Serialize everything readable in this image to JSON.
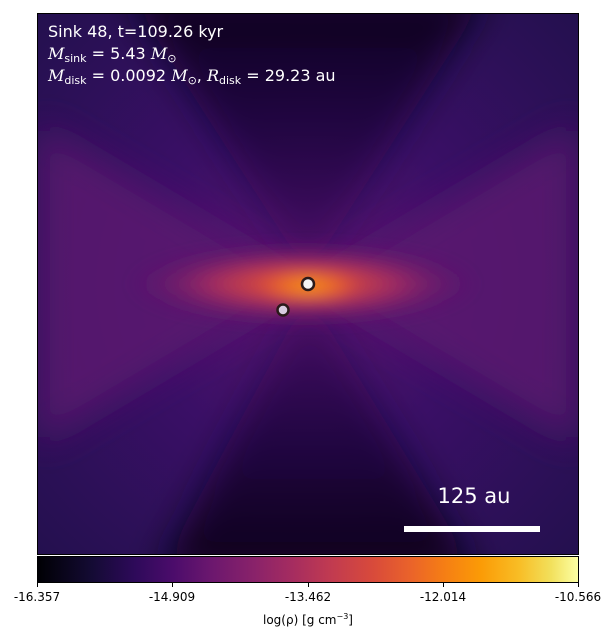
{
  "annotation": {
    "line1": "Sink 48, t=109.26 kyr",
    "msink_symbol": "M",
    "msink_sub": "sink",
    "msink_value": " = 5.43 ",
    "msink_unit": "M",
    "msink_unit_sub": "⊙",
    "mdisk_symbol": "M",
    "mdisk_sub": "disk",
    "mdisk_value": " = 0.0092 ",
    "mdisk_unit": "M",
    "mdisk_unit_sub": "⊙",
    "rdisk_sep": ", ",
    "rdisk_symbol": "R",
    "rdisk_sub": "disk",
    "rdisk_value": " = 29.23 au"
  },
  "scale_bar": {
    "label": "125 au"
  },
  "colorbar": {
    "ticks": [
      "-16.357",
      "-14.909",
      "-13.462",
      "-12.014",
      "-10.566"
    ],
    "label_main": "log(ρ) [g cm",
    "label_exp": "−3",
    "label_end": "]"
  },
  "colors": {
    "background": "#2a0f5c",
    "dark_lobe": "#0c0520",
    "disk": "#d9503f",
    "core": "#f68a1a"
  }
}
